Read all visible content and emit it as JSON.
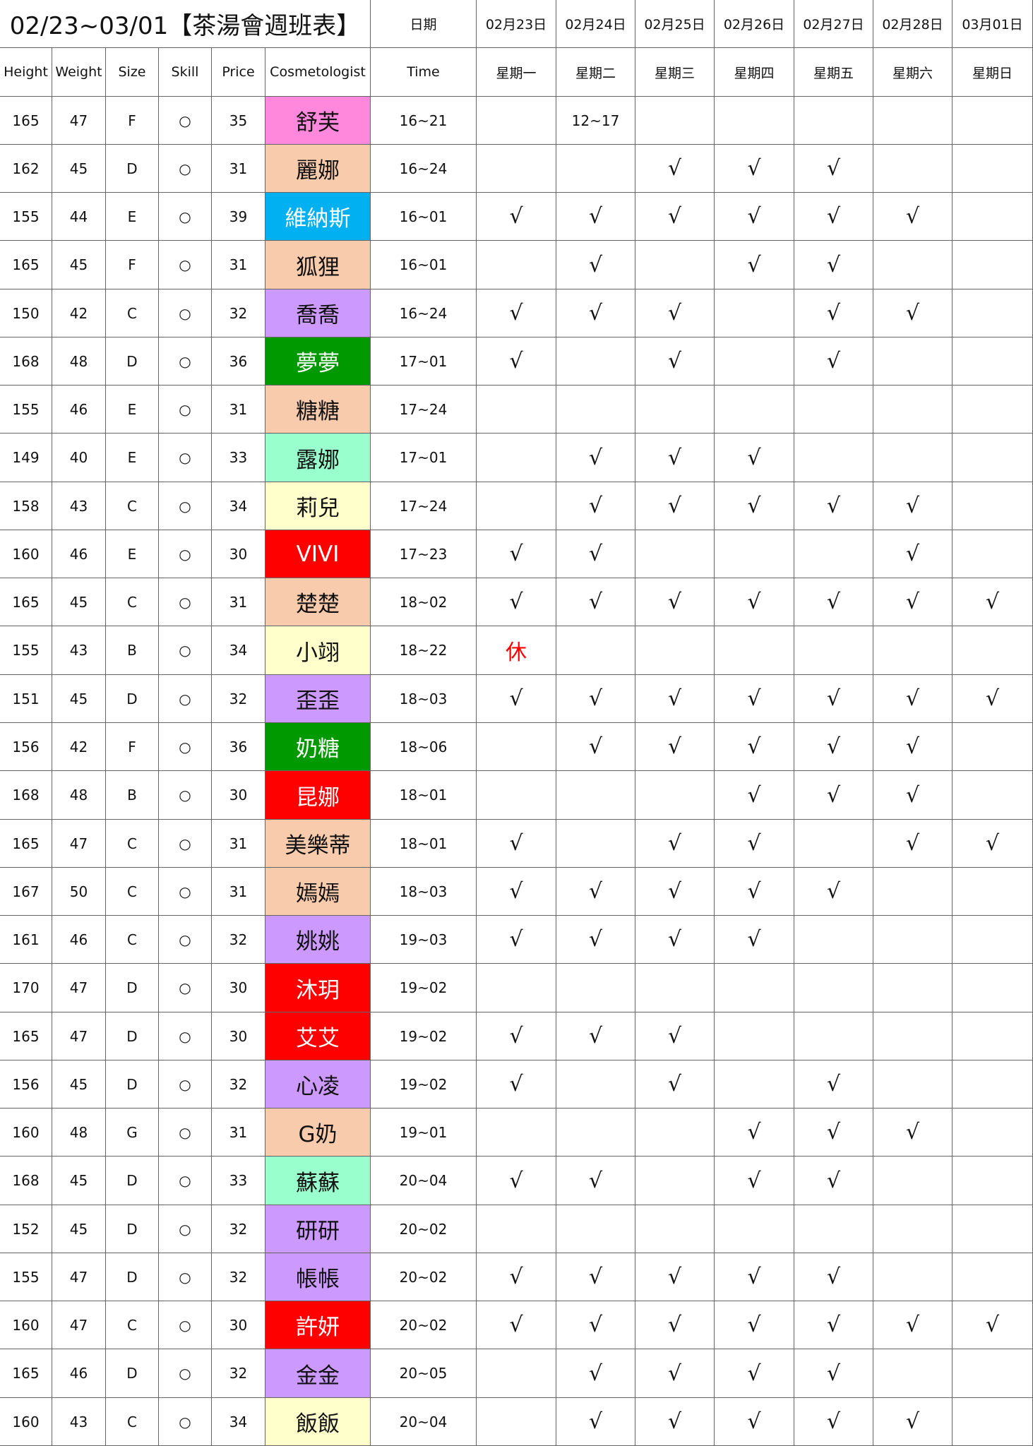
{
  "header": {
    "title": "02/23~03/01【茶湯會週班表】",
    "date_label": "日期",
    "dates": [
      "02月23日",
      "02月24日",
      "02月25日",
      "02月26日",
      "02月27日",
      "02月28日",
      "03月01日"
    ],
    "columns": [
      "Height",
      "Weight",
      "Size",
      "Skill",
      "Price",
      "Cosmetologist",
      "Time"
    ],
    "weekdays": [
      "星期一",
      "星期二",
      "星期三",
      "星期四",
      "星期五",
      "星期六",
      "星期日"
    ]
  },
  "rows": [
    {
      "height": 165,
      "weight": 47,
      "size": "F",
      "skill": "○",
      "price": 35,
      "name": "舒芙",
      "color": "#ff88dd",
      "time": "16~21",
      "days": [
        null,
        "12~17",
        null,
        null,
        null,
        null,
        null
      ]
    },
    {
      "height": 162,
      "weight": 45,
      "size": "D",
      "skill": "○",
      "price": 31,
      "name": "麗娜",
      "color": "#f8cbad",
      "time": "16~24",
      "days": [
        null,
        null,
        "√",
        "√",
        "√",
        null,
        null
      ]
    },
    {
      "height": 155,
      "weight": 44,
      "size": "E",
      "skill": "○",
      "price": 39,
      "name": "維納斯",
      "color": "#00b0f0",
      "time": "16~01",
      "days": [
        "√",
        "√",
        "√",
        "√",
        "√",
        "√",
        null
      ]
    },
    {
      "height": 165,
      "weight": 45,
      "size": "F",
      "skill": "○",
      "price": 31,
      "name": "狐狸",
      "color": "#f8cbad",
      "time": "16~01",
      "days": [
        null,
        "√",
        null,
        "√",
        "√",
        null,
        null
      ]
    },
    {
      "height": 150,
      "weight": 42,
      "size": "C",
      "skill": "○",
      "price": 32,
      "name": "喬喬",
      "color": "#cc99ff",
      "time": "16~24",
      "days": [
        "√",
        "√",
        "√",
        null,
        "√",
        "√",
        null
      ]
    },
    {
      "height": 168,
      "weight": 48,
      "size": "D",
      "skill": "○",
      "price": 36,
      "name": "夢夢",
      "color": "#009900",
      "time": "17~01",
      "days": [
        "√",
        null,
        "√",
        null,
        "√",
        null,
        null
      ]
    },
    {
      "height": 155,
      "weight": 46,
      "size": "E",
      "skill": "○",
      "price": 31,
      "name": "糖糖",
      "color": "#f8cbad",
      "time": "17~24",
      "days": [
        null,
        null,
        null,
        null,
        null,
        null,
        null
      ]
    },
    {
      "height": 149,
      "weight": 40,
      "size": "E",
      "skill": "○",
      "price": 33,
      "name": "露娜",
      "color": "#99ffcc",
      "time": "17~01",
      "days": [
        null,
        "√",
        "√",
        "√",
        null,
        null,
        null
      ]
    },
    {
      "height": 158,
      "weight": 43,
      "size": "C",
      "skill": "○",
      "price": 34,
      "name": "莉兒",
      "color": "#ffffcc",
      "time": "17~24",
      "days": [
        null,
        "√",
        "√",
        "√",
        "√",
        "√",
        null
      ]
    },
    {
      "height": 160,
      "weight": 46,
      "size": "E",
      "skill": "○",
      "price": 30,
      "name": "VIVI",
      "color": "#ff0000",
      "time": "17~23",
      "days": [
        "√",
        "√",
        null,
        null,
        null,
        "√",
        null
      ]
    },
    {
      "height": 165,
      "weight": 45,
      "size": "C",
      "skill": "○",
      "price": 31,
      "name": "楚楚",
      "color": "#f8cbad",
      "time": "18~02",
      "days": [
        "√",
        "√",
        "√",
        "√",
        "√",
        "√",
        "√"
      ]
    },
    {
      "height": 155,
      "weight": 43,
      "size": "B",
      "skill": "○",
      "price": 34,
      "name": "小翊",
      "color": "#ffffcc",
      "time": "18~22",
      "days": [
        "休",
        null,
        null,
        null,
        null,
        null,
        null
      ],
      "day_color": "#ff0000"
    },
    {
      "height": 151,
      "weight": 45,
      "size": "D",
      "skill": "○",
      "price": 32,
      "name": "歪歪",
      "color": "#cc99ff",
      "time": "18~03",
      "days": [
        "√",
        "√",
        "√",
        "√",
        "√",
        "√",
        "√"
      ]
    },
    {
      "height": 156,
      "weight": 42,
      "size": "F",
      "skill": "○",
      "price": 36,
      "name": "奶糖",
      "color": "#009900",
      "time": "18~06",
      "days": [
        null,
        "√",
        "√",
        "√",
        "√",
        "√",
        null
      ]
    },
    {
      "height": 168,
      "weight": 48,
      "size": "B",
      "skill": "○",
      "price": 30,
      "name": "昆娜",
      "color": "#ff0000",
      "time": "18~01",
      "days": [
        null,
        null,
        null,
        "√",
        "√",
        "√",
        null
      ]
    },
    {
      "height": 165,
      "weight": 47,
      "size": "C",
      "skill": "○",
      "price": 31,
      "name": "美樂蒂",
      "color": "#f8cbad",
      "time": "18~01",
      "days": [
        "√",
        null,
        "√",
        "√",
        null,
        "√",
        "√"
      ]
    },
    {
      "height": 167,
      "weight": 50,
      "size": "C",
      "skill": "○",
      "price": 31,
      "name": "嫣嫣",
      "color": "#f8cbad",
      "time": "18~03",
      "days": [
        "√",
        "√",
        "√",
        "√",
        "√",
        null,
        null
      ]
    },
    {
      "height": 161,
      "weight": 46,
      "size": "C",
      "skill": "○",
      "price": 32,
      "name": "姚姚",
      "color": "#cc99ff",
      "time": "19~03",
      "days": [
        "√",
        "√",
        "√",
        "√",
        null,
        null,
        null
      ]
    },
    {
      "height": 170,
      "weight": 47,
      "size": "D",
      "skill": "○",
      "price": 30,
      "name": "沐玥",
      "color": "#ff0000",
      "time": "19~02",
      "days": [
        null,
        null,
        null,
        null,
        null,
        null,
        null
      ]
    },
    {
      "height": 165,
      "weight": 47,
      "size": "D",
      "skill": "○",
      "price": 30,
      "name": "艾艾",
      "color": "#ff0000",
      "time": "19~02",
      "days": [
        "√",
        "√",
        "√",
        null,
        null,
        null,
        null
      ]
    },
    {
      "height": 156,
      "weight": 45,
      "size": "D",
      "skill": "○",
      "price": 32,
      "name": "心凌",
      "color": "#cc99ff",
      "time": "19~02",
      "days": [
        "√",
        null,
        "√",
        null,
        "√",
        null,
        null
      ]
    },
    {
      "height": 160,
      "weight": 48,
      "size": "G",
      "skill": "○",
      "price": 31,
      "name": "G奶",
      "color": "#f8cbad",
      "time": "19~01",
      "days": [
        null,
        null,
        null,
        "√",
        "√",
        "√",
        null
      ]
    },
    {
      "height": 168,
      "weight": 45,
      "size": "D",
      "skill": "○",
      "price": 33,
      "name": "蘇蘇",
      "color": "#99ffcc",
      "time": "20~04",
      "days": [
        "√",
        "√",
        null,
        "√",
        "√",
        null,
        null
      ]
    },
    {
      "height": 152,
      "weight": 45,
      "size": "D",
      "skill": "○",
      "price": 32,
      "name": "研研",
      "color": "#cc99ff",
      "time": "20~02",
      "days": [
        null,
        null,
        null,
        null,
        null,
        null,
        null
      ]
    },
    {
      "height": 155,
      "weight": 47,
      "size": "D",
      "skill": "○",
      "price": 32,
      "name": "帳帳",
      "color": "#cc99ff",
      "time": "20~02",
      "days": [
        "√",
        "√",
        "√",
        "√",
        "√",
        null,
        null
      ]
    },
    {
      "height": 160,
      "weight": 47,
      "size": "C",
      "skill": "○",
      "price": 30,
      "name": "許妍",
      "color": "#ff0000",
      "time": "20~02",
      "days": [
        "√",
        "√",
        "√",
        "√",
        "√",
        "√",
        "√"
      ]
    },
    {
      "height": 165,
      "weight": 46,
      "size": "D",
      "skill": "○",
      "price": 32,
      "name": "金金",
      "color": "#cc99ff",
      "time": "20~05",
      "days": [
        null,
        "√",
        "√",
        "√",
        "√",
        null,
        null
      ]
    },
    {
      "height": 160,
      "weight": 43,
      "size": "C",
      "skill": "○",
      "price": 34,
      "name": "飯飯",
      "color": "#ffffcc",
      "time": "20~04",
      "days": [
        null,
        "√",
        "√",
        "√",
        "√",
        "√",
        null
      ]
    }
  ]
}
